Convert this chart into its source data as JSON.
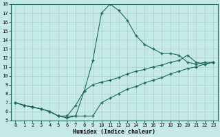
{
  "xlabel": "Humidex (Indice chaleur)",
  "bg_color": "#c5e8e8",
  "grid_color": "#a8d0d0",
  "line_color": "#1a6b5a",
  "xlim": [
    -0.5,
    23.5
  ],
  "ylim": [
    5,
    18
  ],
  "xticks": [
    0,
    1,
    2,
    3,
    4,
    5,
    6,
    7,
    8,
    9,
    10,
    11,
    12,
    13,
    14,
    15,
    16,
    17,
    18,
    19,
    20,
    21,
    22,
    23
  ],
  "yticks": [
    5,
    6,
    7,
    8,
    9,
    10,
    11,
    12,
    13,
    14,
    15,
    16,
    17,
    18
  ],
  "curve1_x": [
    0,
    1,
    2,
    3,
    4,
    5,
    6,
    7,
    8,
    9,
    10,
    11,
    12,
    13,
    14,
    15,
    16,
    17,
    18,
    19,
    20,
    21,
    22,
    23
  ],
  "curve1_y": [
    7.0,
    6.7,
    6.5,
    6.3,
    6.0,
    5.5,
    5.5,
    5.5,
    8.3,
    11.7,
    17.0,
    18.0,
    17.3,
    16.2,
    14.5,
    13.5,
    13.0,
    12.5,
    12.5,
    12.3,
    11.5,
    11.3,
    11.5,
    11.5
  ],
  "curve2_x": [
    0,
    1,
    2,
    3,
    4,
    5,
    6,
    7,
    8,
    9,
    10,
    11,
    12,
    13,
    14,
    15,
    16,
    17,
    18,
    19,
    20,
    21,
    22,
    23
  ],
  "curve2_y": [
    7.0,
    6.7,
    6.5,
    6.3,
    6.0,
    5.5,
    5.5,
    6.7,
    8.3,
    9.0,
    9.3,
    9.5,
    9.8,
    10.2,
    10.5,
    10.7,
    11.0,
    11.2,
    11.5,
    11.7,
    12.3,
    11.5,
    11.3,
    11.5
  ],
  "curve3_x": [
    0,
    1,
    2,
    3,
    4,
    5,
    6,
    7,
    8,
    9,
    10,
    11,
    12,
    13,
    14,
    15,
    16,
    17,
    18,
    19,
    20,
    21,
    22,
    23
  ],
  "curve3_y": [
    7.0,
    6.7,
    6.5,
    6.3,
    6.0,
    5.5,
    5.3,
    5.5,
    5.5,
    5.5,
    7.0,
    7.5,
    8.0,
    8.5,
    8.8,
    9.2,
    9.5,
    9.8,
    10.2,
    10.5,
    10.8,
    11.0,
    11.3,
    11.5
  ]
}
